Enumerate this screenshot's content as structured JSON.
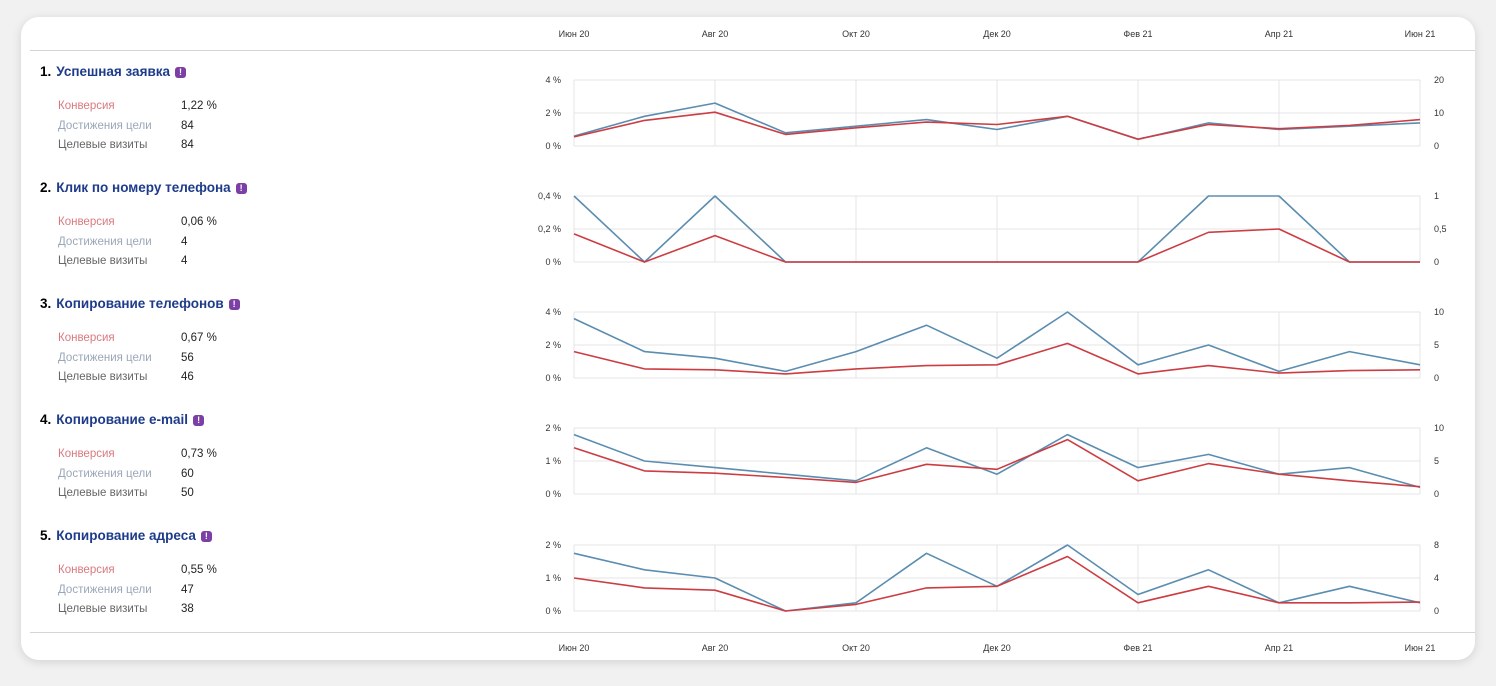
{
  "months_top": [
    "Июн 20",
    "Авг 20",
    "Окт 20",
    "Дек 20",
    "Фев 21",
    "Апр 21",
    "Июн 21"
  ],
  "months_bottom": [
    "Июн 20",
    "Авг 20",
    "Окт 20",
    "Дек 20",
    "Фев 21",
    "Апр 21",
    "Июн 21"
  ],
  "colors": {
    "conversion": "#cc3d43",
    "achievements": "#5b8db0",
    "title": "#1d3b8a",
    "badge": "#7b3fa6"
  },
  "goals": [
    {
      "num": "1.",
      "title": "Успешная заявка",
      "badge_icon": "info-badge-icon",
      "metrics": [
        {
          "label": "Конверсия",
          "value": "1,22 %"
        },
        {
          "label": "Достижения цели",
          "value": "84"
        },
        {
          "label": "Целевые визиты",
          "value": "84"
        }
      ]
    },
    {
      "num": "2.",
      "title": "Клик по номеру телефона",
      "badge_icon": "info-badge-icon",
      "metrics": [
        {
          "label": "Конверсия",
          "value": "0,06 %"
        },
        {
          "label": "Достижения цели",
          "value": "4"
        },
        {
          "label": "Целевые визиты",
          "value": "4"
        }
      ]
    },
    {
      "num": "3.",
      "title": "Копирование телефонов",
      "badge_icon": "info-badge-icon",
      "metrics": [
        {
          "label": "Конверсия",
          "value": "0,67 %"
        },
        {
          "label": "Достижения цели",
          "value": "56"
        },
        {
          "label": "Целевые визиты",
          "value": "46"
        }
      ]
    },
    {
      "num": "4.",
      "title": "Копирование e-mail",
      "badge_icon": "info-badge-icon",
      "metrics": [
        {
          "label": "Конверсия",
          "value": "0,73 %"
        },
        {
          "label": "Достижения цели",
          "value": "60"
        },
        {
          "label": "Целевые визиты",
          "value": "50"
        }
      ]
    },
    {
      "num": "5.",
      "title": "Копирование адреса",
      "badge_icon": "info-badge-icon",
      "metrics": [
        {
          "label": "Конверсия",
          "value": "0,55 %"
        },
        {
          "label": "Достижения цели",
          "value": "47"
        },
        {
          "label": "Целевые визиты",
          "value": "38"
        }
      ]
    }
  ],
  "chart_data": [
    {
      "type": "line",
      "x_count": 13,
      "left_axis": {
        "ticks": [
          "0 %",
          "2 %",
          "4 %"
        ],
        "max": 4
      },
      "right_axis": {
        "ticks": [
          "0",
          "10",
          "20"
        ],
        "max": 20
      },
      "series": [
        {
          "axis": "right",
          "color_key": "achievements",
          "values": [
            3,
            9,
            13,
            4,
            6,
            8,
            5,
            9,
            2,
            7,
            5,
            6,
            7
          ]
        },
        {
          "axis": "left",
          "color_key": "conversion",
          "values": [
            0.55,
            1.55,
            2.05,
            0.7,
            1.1,
            1.45,
            1.3,
            1.8,
            0.42,
            1.3,
            1.05,
            1.25,
            1.6
          ]
        }
      ]
    },
    {
      "type": "line",
      "x_count": 13,
      "left_axis": {
        "ticks": [
          "0 %",
          "0,2 %",
          "0,4 %"
        ],
        "max": 0.4
      },
      "right_axis": {
        "ticks": [
          "0",
          "0,5",
          "1"
        ],
        "max": 1
      },
      "series": [
        {
          "axis": "right",
          "color_key": "achievements",
          "values": [
            1,
            0,
            1,
            0,
            0,
            0,
            0,
            0,
            0,
            1,
            1,
            0,
            0
          ]
        },
        {
          "axis": "left",
          "color_key": "conversion",
          "values": [
            0.17,
            0,
            0.16,
            0,
            0,
            0,
            0,
            0,
            0,
            0.18,
            0.2,
            0,
            0
          ]
        }
      ]
    },
    {
      "type": "line",
      "x_count": 13,
      "left_axis": {
        "ticks": [
          "0 %",
          "2 %",
          "4 %"
        ],
        "max": 4
      },
      "right_axis": {
        "ticks": [
          "0",
          "5",
          "10"
        ],
        "max": 10
      },
      "series": [
        {
          "axis": "right",
          "color_key": "achievements",
          "values": [
            9,
            4,
            3,
            1,
            4,
            8,
            3,
            10,
            2,
            5,
            1,
            4,
            2
          ]
        },
        {
          "axis": "left",
          "color_key": "conversion",
          "values": [
            1.6,
            0.55,
            0.5,
            0.25,
            0.55,
            0.75,
            0.8,
            2.1,
            0.25,
            0.75,
            0.3,
            0.45,
            0.5
          ]
        }
      ]
    },
    {
      "type": "line",
      "x_count": 13,
      "left_axis": {
        "ticks": [
          "0 %",
          "1 %",
          "2 %"
        ],
        "max": 2
      },
      "right_axis": {
        "ticks": [
          "0",
          "5",
          "10"
        ],
        "max": 10
      },
      "series": [
        {
          "axis": "right",
          "color_key": "achievements",
          "values": [
            9,
            5,
            4,
            3,
            2,
            7,
            3,
            9,
            4,
            6,
            3,
            4,
            1
          ]
        },
        {
          "axis": "left",
          "color_key": "conversion",
          "values": [
            1.4,
            0.7,
            0.63,
            0.5,
            0.35,
            0.9,
            0.75,
            1.65,
            0.4,
            0.92,
            0.6,
            0.4,
            0.22
          ]
        }
      ]
    },
    {
      "type": "line",
      "x_count": 13,
      "left_axis": {
        "ticks": [
          "0 %",
          "1 %",
          "2 %"
        ],
        "max": 2
      },
      "right_axis": {
        "ticks": [
          "0",
          "4",
          "8"
        ],
        "max": 8
      },
      "series": [
        {
          "axis": "right",
          "color_key": "achievements",
          "values": [
            7,
            5,
            4,
            0,
            1,
            7,
            3,
            8,
            2,
            5,
            1,
            3,
            1
          ]
        },
        {
          "axis": "left",
          "color_key": "conversion",
          "values": [
            1.0,
            0.7,
            0.63,
            0,
            0.2,
            0.7,
            0.75,
            1.65,
            0.25,
            0.75,
            0.25,
            0.25,
            0.27
          ]
        }
      ]
    }
  ]
}
